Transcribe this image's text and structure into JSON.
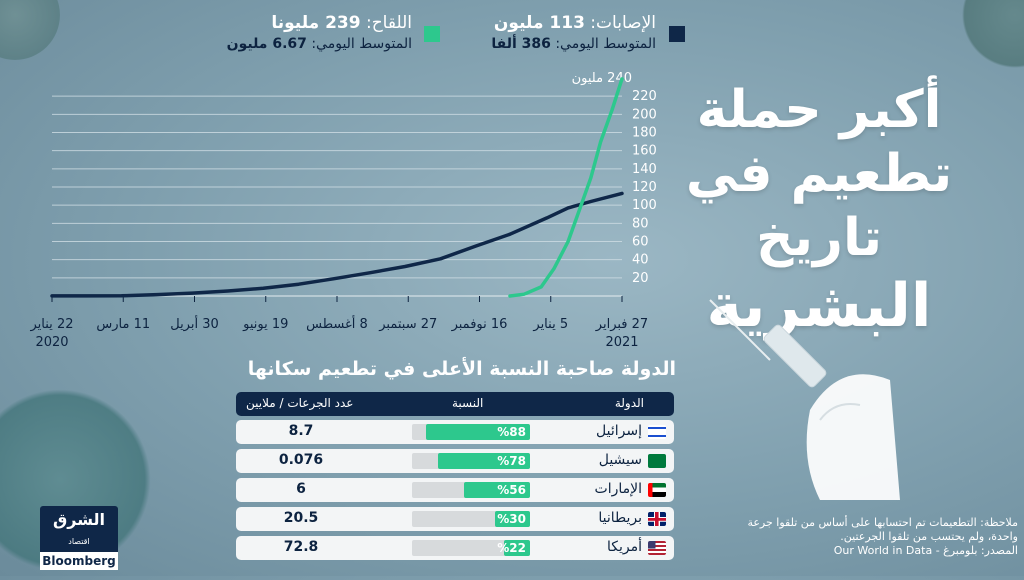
{
  "title": {
    "line1": "أكبر حملة",
    "line2": "تطعيم في تاريخ",
    "line3": "البشرية"
  },
  "legend": {
    "cases": {
      "label": "الإصابات: ",
      "value": "113 مليون",
      "avg_label": "المتوسط اليومي: ",
      "avg_value": "386 ألفا",
      "color": "#0f2748"
    },
    "vaccines": {
      "label": "اللقاح: ",
      "value": "239 مليونا",
      "avg_label": "المتوسط اليومي: ",
      "avg_value": "6.67 مليون",
      "color": "#2dc88d"
    }
  },
  "chart_data": {
    "type": "line",
    "y_unit_label": "240 مليون",
    "yticks": [
      20,
      40,
      60,
      80,
      100,
      120,
      140,
      160,
      180,
      200,
      220
    ],
    "ylim": [
      0,
      240
    ],
    "xticks": [
      "22 يناير",
      "11 مارس",
      "30 أبريل",
      "19 يونيو",
      "8 أغسطس",
      "27 سبتمبر",
      "16 نوفمبر",
      "5 يناير",
      "27 فبراير"
    ],
    "x_year_start": "2020",
    "x_year_end": "2021",
    "series": [
      {
        "key": "cases",
        "color": "#0f2748",
        "x": [
          "2020-01-22",
          "2020-02-15",
          "2020-03-11",
          "2020-04-05",
          "2020-04-30",
          "2020-05-25",
          "2020-06-19",
          "2020-07-14",
          "2020-08-08",
          "2020-09-02",
          "2020-09-27",
          "2020-10-22",
          "2020-11-16",
          "2020-12-10",
          "2021-01-05",
          "2021-01-20",
          "2021-02-05",
          "2021-02-27"
        ],
        "y": [
          0.1,
          0.1,
          0.2,
          1.5,
          3.2,
          5.5,
          8.5,
          13,
          19,
          25.5,
          32.5,
          41,
          55,
          68,
          86,
          97,
          104,
          113
        ]
      },
      {
        "key": "vaccines",
        "color": "#2dc88d",
        "x": [
          "2020-12-10",
          "2020-12-20",
          "2021-01-01",
          "2021-01-10",
          "2021-01-20",
          "2021-01-28",
          "2021-02-05",
          "2021-02-12",
          "2021-02-20",
          "2021-02-27"
        ],
        "y": [
          0,
          2,
          10,
          30,
          60,
          95,
          130,
          170,
          205,
          239
        ]
      }
    ]
  },
  "table": {
    "title": "الدولة صاحبة النسبة الأعلى في تطعيم سكانها",
    "headers": {
      "country": "الدولة",
      "ratio": "النسبة",
      "doses": "عدد الجرعات / ملايين"
    },
    "rows": [
      {
        "country": "إسرائيل",
        "flag": "israel-flag",
        "pct_value": 88,
        "pct_label": "%88",
        "doses": "8.7"
      },
      {
        "country": "سيشيل",
        "flag": "seychelles-flag",
        "pct_value": 78,
        "pct_label": "%78",
        "doses": "0.076"
      },
      {
        "country": "الإمارات",
        "flag": "uae-flag",
        "pct_value": 56,
        "pct_label": "%56",
        "doses": "6"
      },
      {
        "country": "بريطانيا",
        "flag": "uk-flag",
        "pct_value": 30,
        "pct_label": "%30",
        "doses": "20.5"
      },
      {
        "country": "أمريكا",
        "flag": "usa-flag",
        "pct_value": 22,
        "pct_label": "%22",
        "doses": "72.8"
      }
    ]
  },
  "note": {
    "line1": "ملاحظة: التطعيمات تم احتسابها على أساس من تلقوا جرعة",
    "line2": "واحدة، ولم يحتسب من تلقوا الجرعتين.",
    "line3": "المصدر: بلومبرغ - Our World in Data"
  },
  "logo": {
    "brand_ar": "الشرق",
    "sub_ar": "اقتصاد",
    "partner": "Bloomberg"
  },
  "colors": {
    "navy": "#0f2748",
    "green": "#2dc88d",
    "bg": "#8eabb9"
  }
}
